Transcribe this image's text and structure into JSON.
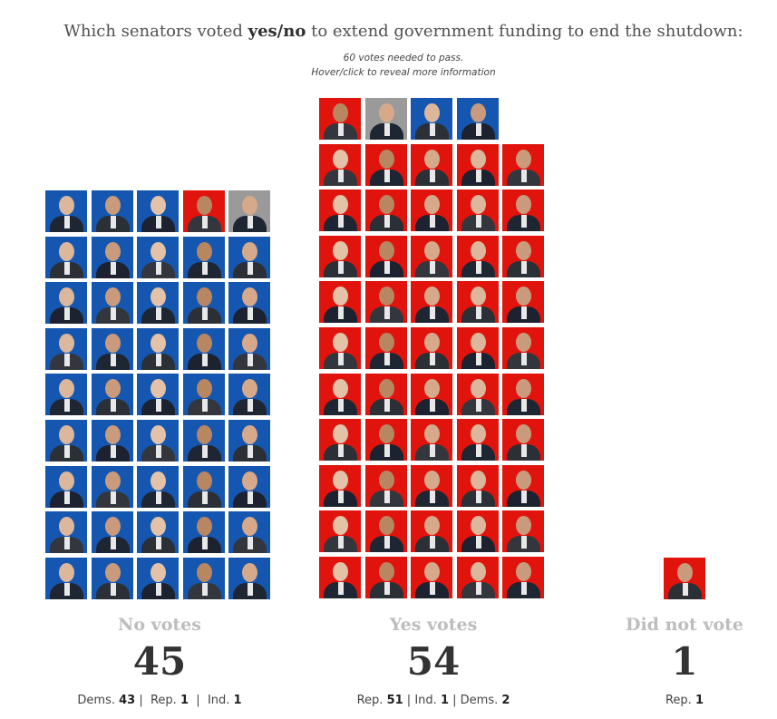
{
  "header": {
    "title_prefix": "Which senators voted ",
    "title_bold": "yes/no",
    "title_suffix": " to extend government funding to end the shutdown:",
    "note_1": "60 votes needed to pass.",
    "note_2": "Hover/click to reveal more information"
  },
  "colors": {
    "democrat": "#1557b0",
    "republican": "#e0140d",
    "independent": "#9a9a9a"
  },
  "chart_data": {
    "type": "table",
    "groups": [
      {
        "label": "No votes",
        "count": 45,
        "breakdown": [
          {
            "party": "Dems.",
            "count": 43
          },
          {
            "party": "Rep.",
            "count": 1
          },
          {
            "party": "Ind.",
            "count": 1
          }
        ]
      },
      {
        "label": "Yes votes",
        "count": 54,
        "breakdown": [
          {
            "party": "Rep.",
            "count": 51
          },
          {
            "party": "Ind.",
            "count": 1
          },
          {
            "party": "Dems.",
            "count": 2
          }
        ]
      },
      {
        "label": "Did not vote",
        "count": 1,
        "breakdown": [
          {
            "party": "Rep.",
            "count": 1
          }
        ]
      }
    ],
    "tiles": {
      "no_votes": [
        "D",
        "D",
        "D",
        "R",
        "I",
        "D",
        "D",
        "D",
        "D",
        "D",
        "D",
        "D",
        "D",
        "D",
        "D",
        "D",
        "D",
        "D",
        "D",
        "D",
        "D",
        "D",
        "D",
        "D",
        "D",
        "D",
        "D",
        "D",
        "D",
        "D",
        "D",
        "D",
        "D",
        "D",
        "D",
        "D",
        "D",
        "D",
        "D",
        "D",
        "D",
        "D",
        "D",
        "D",
        "D"
      ],
      "yes_votes": [
        "R",
        "I",
        "D",
        "D",
        "R",
        "R",
        "R",
        "R",
        "R",
        "R",
        "R",
        "R",
        "R",
        "R",
        "R",
        "R",
        "R",
        "R",
        "R",
        "R",
        "R",
        "R",
        "R",
        "R",
        "R",
        "R",
        "R",
        "R",
        "R",
        "R",
        "R",
        "R",
        "R",
        "R",
        "R",
        "R",
        "R",
        "R",
        "R",
        "R",
        "R",
        "R",
        "R",
        "R",
        "R",
        "R",
        "R",
        "R",
        "R",
        "R",
        "R",
        "R",
        "R",
        "R"
      ],
      "did_not_vote": [
        "R"
      ]
    }
  }
}
